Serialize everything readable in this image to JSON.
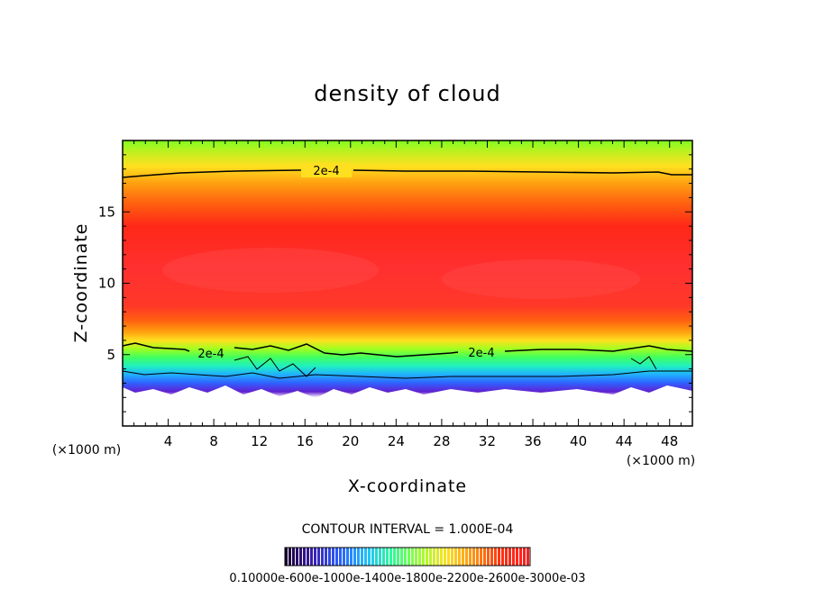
{
  "chart_data": {
    "type": "heatmap",
    "title": "density of cloud",
    "xlabel": "X-coordinate",
    "ylabel": "Z-coordinate",
    "x_unit": "(×1000 m)",
    "y_unit": "(×1000 m)",
    "xlim": [
      0,
      50
    ],
    "ylim": [
      0,
      20
    ],
    "x_ticks": [
      4,
      8,
      12,
      16,
      20,
      24,
      28,
      32,
      36,
      40,
      44,
      48
    ],
    "y_ticks": [
      5,
      10,
      15
    ],
    "contour_interval_text": "CONTOUR INTERVAL = 1.000E-04",
    "contour_lines": [
      {
        "label": "2e-4",
        "level": "upper",
        "z": 17.6,
        "label_x": 17.5
      },
      {
        "label": "2e-4",
        "level": "lower-left",
        "z": 5.1,
        "label_x": 7.7
      },
      {
        "label": "2e-4",
        "level": "lower-right",
        "z": 5.2,
        "label_x": 31.5
      }
    ],
    "colorbar_text": "0.10000e-600e-1000e-1400e-1800e-2200e-2600e-3000e-03",
    "colorbar_colors": [
      "#1a0030",
      "#3a1fb0",
      "#2a60ff",
      "#20c0ff",
      "#30ff90",
      "#a0ff30",
      "#ffe020",
      "#ff9010",
      "#ff3010",
      "#ff2020"
    ]
  }
}
